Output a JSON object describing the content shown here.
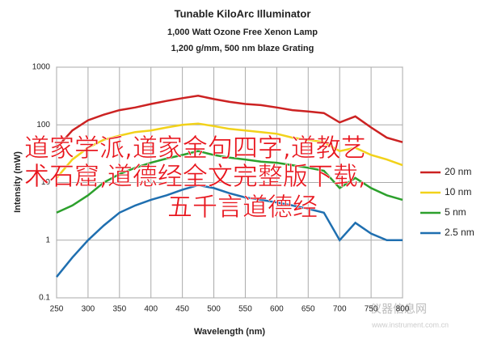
{
  "chart_data": {
    "type": "line",
    "title": "Tunable KiloArc Illuminator",
    "subtitle": [
      "1,000 Watt Ozone Free Xenon Lamp",
      "1,200 g/mm, 500 nm blaze Grating"
    ],
    "x_label": "Wavelength (nm)",
    "y_label": "Intensity (mW)",
    "log_y": true,
    "grid": true,
    "legend": "right",
    "x": [
      250,
      275,
      300,
      325,
      350,
      375,
      400,
      425,
      450,
      475,
      500,
      525,
      550,
      575,
      600,
      625,
      650,
      675,
      700,
      725,
      750,
      775,
      800
    ],
    "xlim": [
      250,
      800
    ],
    "xticks": [
      250,
      300,
      350,
      400,
      450,
      500,
      550,
      600,
      650,
      700,
      750,
      800
    ],
    "ylim": [
      0.1,
      1000
    ],
    "yticks": [
      0.1,
      1,
      10,
      100,
      1000
    ],
    "series": [
      {
        "name": "20 nm",
        "color": "#cc2222",
        "values": [
          40,
          80,
          120,
          150,
          180,
          200,
          230,
          260,
          290,
          320,
          280,
          250,
          230,
          220,
          200,
          180,
          170,
          160,
          110,
          140,
          90,
          60,
          50
        ]
      },
      {
        "name": "10 nm",
        "color": "#f2d21a",
        "values": [
          12,
          25,
          40,
          55,
          65,
          75,
          80,
          90,
          100,
          105,
          95,
          85,
          80,
          75,
          70,
          60,
          55,
          50,
          35,
          40,
          30,
          25,
          20
        ]
      },
      {
        "name": "5 nm",
        "color": "#2ca02c",
        "values": [
          3,
          4,
          6,
          10,
          14,
          18,
          22,
          26,
          30,
          35,
          30,
          27,
          25,
          23,
          22,
          20,
          18,
          16,
          8,
          12,
          8,
          6,
          5
        ]
      },
      {
        "name": "2.5 nm",
        "color": "#1f6fb0",
        "values": [
          0.23,
          0.5,
          1,
          1.8,
          3,
          4,
          5,
          6,
          7.5,
          9,
          8,
          6.5,
          5.5,
          5,
          4.5,
          4,
          3.5,
          3,
          1,
          2,
          1.3,
          1,
          1
        ]
      }
    ],
    "overlay_text": [
      "道家学派,道家金句四字,道教艺",
      "术石窟,道德经全文完整版下载,",
      "五千言道德经"
    ],
    "watermark": [
      "仪器信息网",
      "www.instrument.com.cn"
    ]
  }
}
